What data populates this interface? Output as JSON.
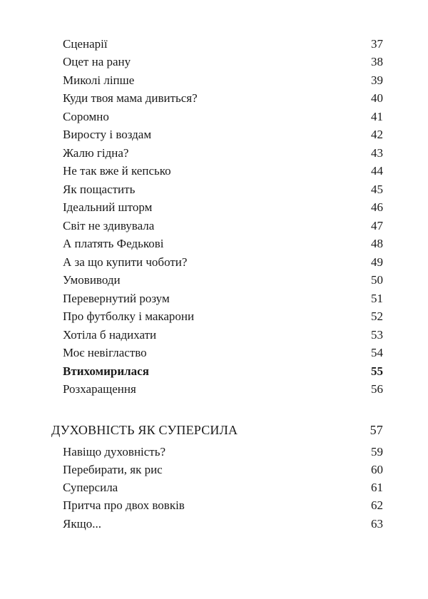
{
  "entries": [
    {
      "title": "Сценарії",
      "page": "37"
    },
    {
      "title": "Оцет на рану",
      "page": "38"
    },
    {
      "title": "Миколі ліпше",
      "page": "39"
    },
    {
      "title": "Куди твоя мама дивиться?",
      "page": "40"
    },
    {
      "title": "Соромно",
      "page": "41"
    },
    {
      "title": "Виросту і воздам",
      "page": "42"
    },
    {
      "title": "Жалю гідна?",
      "page": "43"
    },
    {
      "title": "Не так вже й кепсько",
      "page": "44"
    },
    {
      "title": "Як пощастить",
      "page": "45"
    },
    {
      "title": "Ідеальний шторм",
      "page": "46"
    },
    {
      "title": "Світ не здивувала",
      "page": "47"
    },
    {
      "title": "А платять Федькові",
      "page": "48"
    },
    {
      "title": "А за що купити чоботи?",
      "page": "49"
    },
    {
      "title": "Умовиводи",
      "page": "50"
    },
    {
      "title": "Перевернутий розум",
      "page": "51"
    },
    {
      "title": "Про футболку і макарони",
      "page": "52"
    },
    {
      "title": "Хотіла б надихати",
      "page": "53"
    },
    {
      "title": "Моє невігластво",
      "page": "54"
    },
    {
      "title": "Втихомирилася",
      "page": "55"
    },
    {
      "title": "Розхаращення",
      "page": "56"
    }
  ],
  "section": {
    "title": "ДУХОВНІСТЬ ЯК СУПЕРСИЛА",
    "page": "57"
  },
  "section_entries": [
    {
      "title": "Навіщо духовність?",
      "page": "59"
    },
    {
      "title": "Перебирати, як рис",
      "page": "60"
    },
    {
      "title": "Суперсила",
      "page": "61"
    },
    {
      "title": "Притча про двох вовків",
      "page": "62"
    },
    {
      "title": "Якщо...",
      "page": "63"
    }
  ]
}
